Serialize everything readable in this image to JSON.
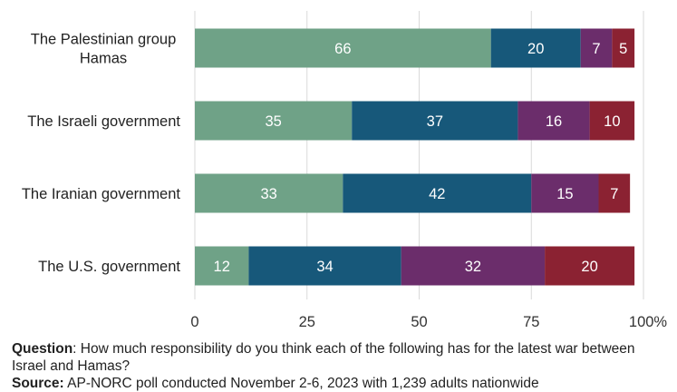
{
  "chart_data": {
    "type": "bar",
    "orientation": "horizontal",
    "stacked": true,
    "categories": [
      [
        "The Palestinian group",
        "Hamas"
      ],
      [
        "The Israeli government"
      ],
      [
        "The Iranian government"
      ],
      [
        "The U.S. government"
      ]
    ],
    "series": [
      {
        "color": "#6fa287",
        "values": [
          66,
          35,
          33,
          12
        ]
      },
      {
        "color": "#17587a",
        "values": [
          20,
          37,
          42,
          34
        ]
      },
      {
        "color": "#6b2d6b",
        "values": [
          7,
          16,
          15,
          32
        ]
      },
      {
        "color": "#8b2232",
        "values": [
          5,
          10,
          7,
          20
        ]
      }
    ],
    "xlim": [
      0,
      100
    ],
    "x_ticks": [
      "0",
      "25",
      "50",
      "75",
      "100%"
    ],
    "gridlines": true,
    "legend": "none"
  },
  "footer": {
    "question_label": "Question",
    "question_text": ": How much responsibility do you think each of the following has for the latest war between Israel and Hamas?",
    "source_label": "Source:",
    "source_text": " AP-NORC poll conducted November 2-6, 2023 with 1,239 adults nationwide"
  }
}
